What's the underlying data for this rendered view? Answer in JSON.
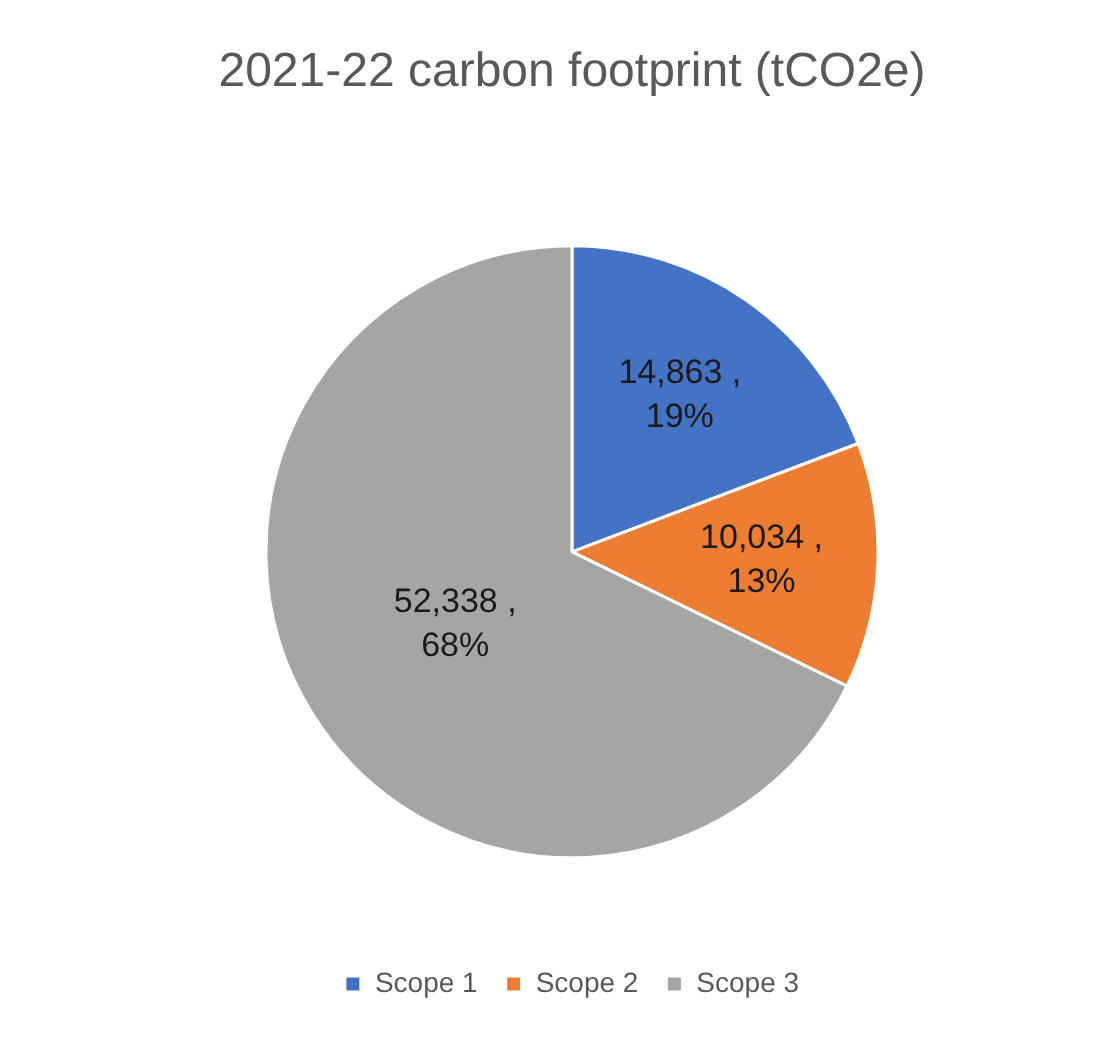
{
  "chart_data": {
    "type": "pie",
    "title": "2021-22 carbon footprint (tCO2e)",
    "categories": [
      "Scope 1",
      "Scope 2",
      "Scope 3"
    ],
    "values": [
      14863,
      10034,
      52338
    ],
    "colors": [
      "#4472c4",
      "#ed7d31",
      "#a5a5a5"
    ],
    "value_labels": [
      "14,863 ,\n19%",
      "10,034 ,\n13%",
      "52,338 ,\n68%"
    ],
    "legend": "bottom"
  }
}
